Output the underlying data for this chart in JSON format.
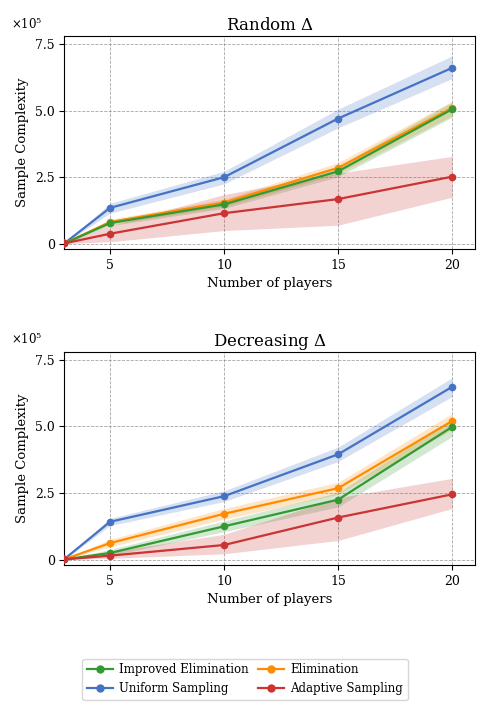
{
  "x": [
    3,
    5,
    10,
    15,
    20
  ],
  "random_uniform_mean": [
    2000,
    135000,
    250000,
    470000,
    660000
  ],
  "random_uniform_lo": [
    2000,
    115000,
    225000,
    435000,
    620000
  ],
  "random_uniform_hi": [
    2000,
    152000,
    272000,
    505000,
    705000
  ],
  "random_elim_mean": [
    2000,
    82000,
    155000,
    285000,
    510000
  ],
  "random_elim_lo": [
    1500,
    72000,
    140000,
    262000,
    480000
  ],
  "random_elim_hi": [
    2500,
    92000,
    168000,
    305000,
    535000
  ],
  "random_imp_mean": [
    1500,
    78000,
    148000,
    272000,
    505000
  ],
  "random_imp_lo": [
    1000,
    68000,
    133000,
    252000,
    475000
  ],
  "random_imp_hi": [
    2000,
    88000,
    162000,
    292000,
    532000
  ],
  "random_adapt_mean": [
    2000,
    38000,
    115000,
    168000,
    252000
  ],
  "random_adapt_lo": [
    1000,
    8000,
    50000,
    70000,
    175000
  ],
  "random_adapt_hi": [
    3500,
    68000,
    185000,
    265000,
    328000
  ],
  "decr_uniform_mean": [
    2000,
    142000,
    238000,
    395000,
    648000
  ],
  "decr_uniform_lo": [
    1500,
    128000,
    218000,
    368000,
    612000
  ],
  "decr_uniform_hi": [
    2500,
    155000,
    258000,
    422000,
    682000
  ],
  "decr_elim_mean": [
    1500,
    62000,
    172000,
    268000,
    520000
  ],
  "decr_elim_lo": [
    1000,
    48000,
    152000,
    245000,
    488000
  ],
  "decr_elim_hi": [
    2000,
    76000,
    192000,
    290000,
    548000
  ],
  "decr_imp_mean": [
    1000,
    25000,
    125000,
    225000,
    498000
  ],
  "decr_imp_lo": [
    500,
    15000,
    105000,
    198000,
    462000
  ],
  "decr_imp_hi": [
    1500,
    38000,
    145000,
    252000,
    528000
  ],
  "decr_adapt_mean": [
    1000,
    15000,
    55000,
    158000,
    245000
  ],
  "decr_adapt_lo": [
    500,
    5000,
    22000,
    72000,
    192000
  ],
  "decr_adapt_hi": [
    2000,
    30000,
    95000,
    232000,
    305000
  ],
  "color_uniform": "#4472C4",
  "color_elim": "#FF8C00",
  "color_imp": "#339933",
  "color_adapt": "#CC3333",
  "title_top": "Random $\\Delta$",
  "title_bot": "Decreasing $\\Delta$",
  "ylabel": "Sample Complexity",
  "xlabel": "Number of players",
  "xticks": [
    5,
    10,
    15,
    20
  ],
  "yticks": [
    0,
    250000,
    500000,
    750000
  ],
  "yticklabels": [
    "0",
    "2.5",
    "5.0",
    "7.5"
  ],
  "ylim": [
    -20000,
    780000
  ],
  "xlim": [
    3,
    21
  ],
  "scale_label": "$\\times10^5$"
}
